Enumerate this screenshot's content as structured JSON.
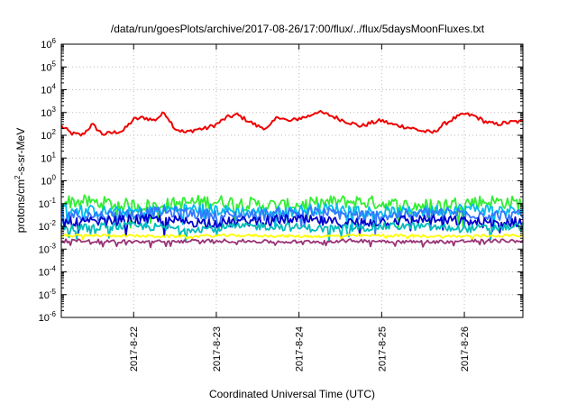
{
  "chart_data": {
    "type": "line",
    "title": "/data/run/goesPlots/archive/2017-08-26/17:00/flux/../flux/5daysMoonFluxes.txt",
    "xlabel": "Coordinated Universal Time (UTC)",
    "ylabel_parts": [
      "protons/cm",
      "2",
      "-s-sr-MeV"
    ],
    "y_scale": "log",
    "ylim_exp": [
      -6,
      6
    ],
    "y_tick_exponents": [
      -6,
      -5,
      -4,
      -3,
      -2,
      -1,
      0,
      1,
      2,
      3,
      4,
      5,
      6
    ],
    "y_tick_base": "10",
    "x_range_days": [
      "2017-08-21T03:00",
      "2017-08-26T17:00"
    ],
    "x_tick_labels": [
      "2017-8-22",
      "2017-8-23",
      "2017-8-24",
      "2017-8-25",
      "2017-8-26"
    ],
    "grid": true,
    "legend": "none",
    "series": [
      {
        "color": "#ee0000",
        "points": [
          [
            "2017-08-21T03:00",
            250
          ],
          [
            "2017-08-21T06:00",
            120
          ],
          [
            "2017-08-21T09:00",
            100
          ],
          [
            "2017-08-21T12:00",
            300
          ],
          [
            "2017-08-21T15:00",
            110
          ],
          [
            "2017-08-21T18:00",
            130
          ],
          [
            "2017-08-21T21:00",
            160
          ],
          [
            "2017-08-22T00:00",
            500
          ],
          [
            "2017-08-22T03:00",
            600
          ],
          [
            "2017-08-22T06:00",
            450
          ],
          [
            "2017-08-22T09:00",
            1000
          ],
          [
            "2017-08-22T12:00",
            200
          ],
          [
            "2017-08-22T15:00",
            130
          ],
          [
            "2017-08-22T18:00",
            180
          ],
          [
            "2017-08-22T21:00",
            200
          ],
          [
            "2017-08-23T00:00",
            300
          ],
          [
            "2017-08-23T03:00",
            600
          ],
          [
            "2017-08-23T06:00",
            800
          ],
          [
            "2017-08-23T09:00",
            450
          ],
          [
            "2017-08-23T12:00",
            250
          ],
          [
            "2017-08-23T15:00",
            200
          ],
          [
            "2017-08-23T18:00",
            700
          ],
          [
            "2017-08-23T21:00",
            400
          ],
          [
            "2017-08-24T00:00",
            550
          ],
          [
            "2017-08-24T03:00",
            700
          ],
          [
            "2017-08-24T05:00",
            1100
          ],
          [
            "2017-08-24T09:00",
            750
          ],
          [
            "2017-08-24T12:00",
            500
          ],
          [
            "2017-08-24T15:00",
            350
          ],
          [
            "2017-08-24T18:00",
            250
          ],
          [
            "2017-08-24T21:00",
            350
          ],
          [
            "2017-08-25T00:00",
            450
          ],
          [
            "2017-08-25T03:00",
            300
          ],
          [
            "2017-08-25T06:00",
            250
          ],
          [
            "2017-08-25T09:00",
            200
          ],
          [
            "2017-08-25T12:00",
            150
          ],
          [
            "2017-08-25T15:00",
            130
          ],
          [
            "2017-08-25T18:00",
            300
          ],
          [
            "2017-08-25T21:00",
            550
          ],
          [
            "2017-08-26T00:00",
            850
          ],
          [
            "2017-08-26T03:00",
            700
          ],
          [
            "2017-08-26T06:00",
            400
          ],
          [
            "2017-08-26T09:00",
            300
          ],
          [
            "2017-08-26T12:00",
            350
          ],
          [
            "2017-08-26T15:00",
            400
          ],
          [
            "2017-08-26T17:00",
            380
          ]
        ]
      },
      {
        "color": "#33ee33",
        "base": 0.1,
        "spread": 0.6,
        "phase": 1
      },
      {
        "color": "#00bbee",
        "base": 0.05,
        "spread": 0.5,
        "phase": 2
      },
      {
        "color": "#3377ff",
        "base": 0.035,
        "spread": 0.5,
        "phase": 3
      },
      {
        "color": "#0000cc",
        "base": 0.017,
        "spread": 0.45,
        "phase": 4
      },
      {
        "color": "#00bbbb",
        "base": 0.009,
        "spread": 0.35,
        "phase": 5
      },
      {
        "color": "#ffff00",
        "base": 0.0038,
        "spread": 0.12,
        "phase": 6
      },
      {
        "color": "#993377",
        "base": 0.0022,
        "spread": 0.15,
        "phase": 7
      }
    ]
  }
}
